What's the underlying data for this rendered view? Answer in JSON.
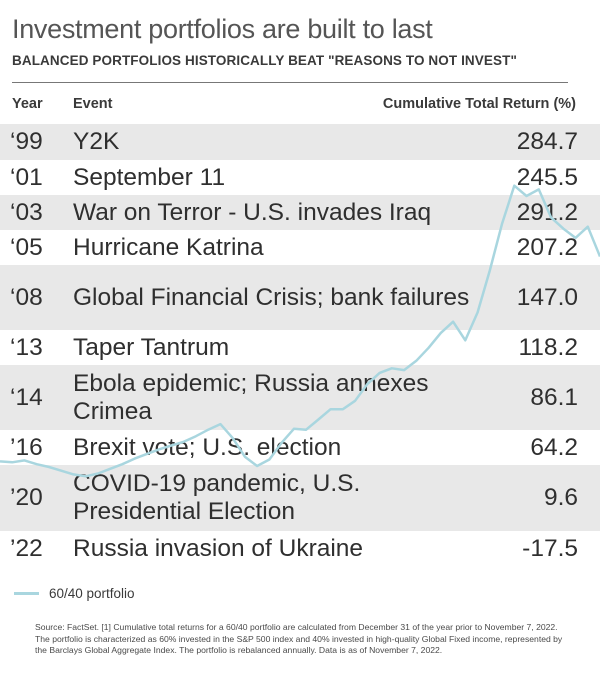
{
  "title": "Investment portfolios are built to last",
  "subtitle": "BALANCED PORTFOLIOS HISTORICALLY BEAT \"REASONS TO NOT INVEST\"",
  "table": {
    "headers": {
      "year": "Year",
      "event": "Event",
      "return": "Cumulative Total Return (%)"
    },
    "rows": [
      {
        "year": "‘99",
        "event": "Y2K",
        "return": "284.7"
      },
      {
        "year": "‘01",
        "event": "September 11",
        "return": "245.5"
      },
      {
        "year": "‘03",
        "event": "War on Terror - U.S. invades Iraq",
        "return": "291.2"
      },
      {
        "year": "‘05",
        "event": "Hurricane Katrina",
        "return": "207.2"
      },
      {
        "year": "‘08",
        "event": "Global Financial Crisis; bank failures",
        "return": "147.0"
      },
      {
        "year": "‘13",
        "event": "Taper Tantrum",
        "return": "118.2"
      },
      {
        "year": "‘14",
        "event": "Ebola epidemic; Russia annexes Crimea",
        "return": "86.1"
      },
      {
        "year": "’16",
        "event": "Brexit vote; U.S. election",
        "return": "64.2"
      },
      {
        "year": "’20",
        "event": "COVID-19 pandemic, U.S. Presidential Election",
        "return": "9.6"
      },
      {
        "year": "’22",
        "event": "Russia invasion of Ukraine",
        "return": "-17.5"
      }
    ]
  },
  "legend": {
    "label": "60/40 portfolio",
    "color": "#a9d6df"
  },
  "source": "Source: FactSet. [1] Cumulative total returns for a 60/40 portfolio are calculated from December 31 of the year prior to November 7, 2022. The portfolio is characterized as 60% invested in the S&P 500 index and 40% invested in high-quality Global Fixed income, represented by the Barclays Global Aggregate Index. The portfolio is rebalanced annually. Data is as of November 7, 2022.",
  "chart_data": {
    "type": "line",
    "series": [
      {
        "name": "60/40 portfolio",
        "color": "#a9d6df",
        "values": [
          1.0,
          0.99,
          1.01,
          0.97,
          0.94,
          0.9,
          0.86,
          0.84,
          0.87,
          0.92,
          0.97,
          1.03,
          1.08,
          1.13,
          1.17,
          1.21,
          1.27,
          1.34,
          1.4,
          1.25,
          1.05,
          0.95,
          1.02,
          1.2,
          1.35,
          1.34,
          1.45,
          1.56,
          1.56,
          1.65,
          1.83,
          1.95,
          2.0,
          1.98,
          2.08,
          2.22,
          2.38,
          2.5,
          2.3,
          2.6,
          3.05,
          3.55,
          3.96,
          3.85,
          3.92,
          3.62,
          3.5,
          3.4,
          3.52,
          3.2
        ]
      }
    ]
  }
}
